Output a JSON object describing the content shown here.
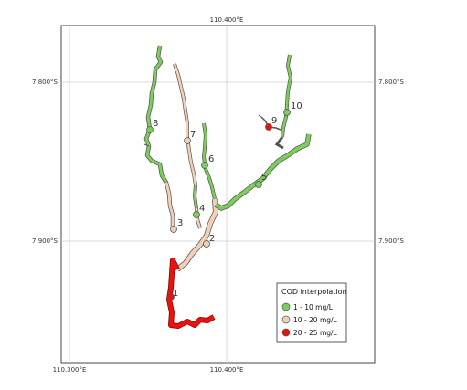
{
  "map": {
    "ticks": {
      "top": [
        "110.400°E"
      ],
      "bottom": [
        "110.300°E",
        "110.400°E"
      ],
      "left": [
        "7.800°S",
        "7.900°S"
      ],
      "right": [
        "7.800°S",
        "7.900°S"
      ]
    },
    "colors": {
      "low": "#7ccd5b",
      "mid": "#f2d0b8",
      "high": "#e8130f",
      "frame": "#444444",
      "grid": "#cfcfcf",
      "line_edge": "#555555"
    },
    "sites": [
      {
        "id": "1",
        "class": "high"
      },
      {
        "id": "2",
        "class": "mid"
      },
      {
        "id": "3",
        "class": "mid"
      },
      {
        "id": "4",
        "class": "low"
      },
      {
        "id": "5",
        "class": "low"
      },
      {
        "id": "6",
        "class": "low"
      },
      {
        "id": "7",
        "class": "mid"
      },
      {
        "id": "8",
        "class": "low"
      },
      {
        "id": "9",
        "class": "high"
      },
      {
        "id": "10",
        "class": "low"
      }
    ],
    "legend": {
      "title": "COD interpolation",
      "items": [
        {
          "label": "1 - 10 mg/L",
          "class": "low"
        },
        {
          "label": "10 - 20 mg/L",
          "class": "mid"
        },
        {
          "label": "20 - 25 mg/L",
          "class": "high"
        }
      ]
    }
  }
}
